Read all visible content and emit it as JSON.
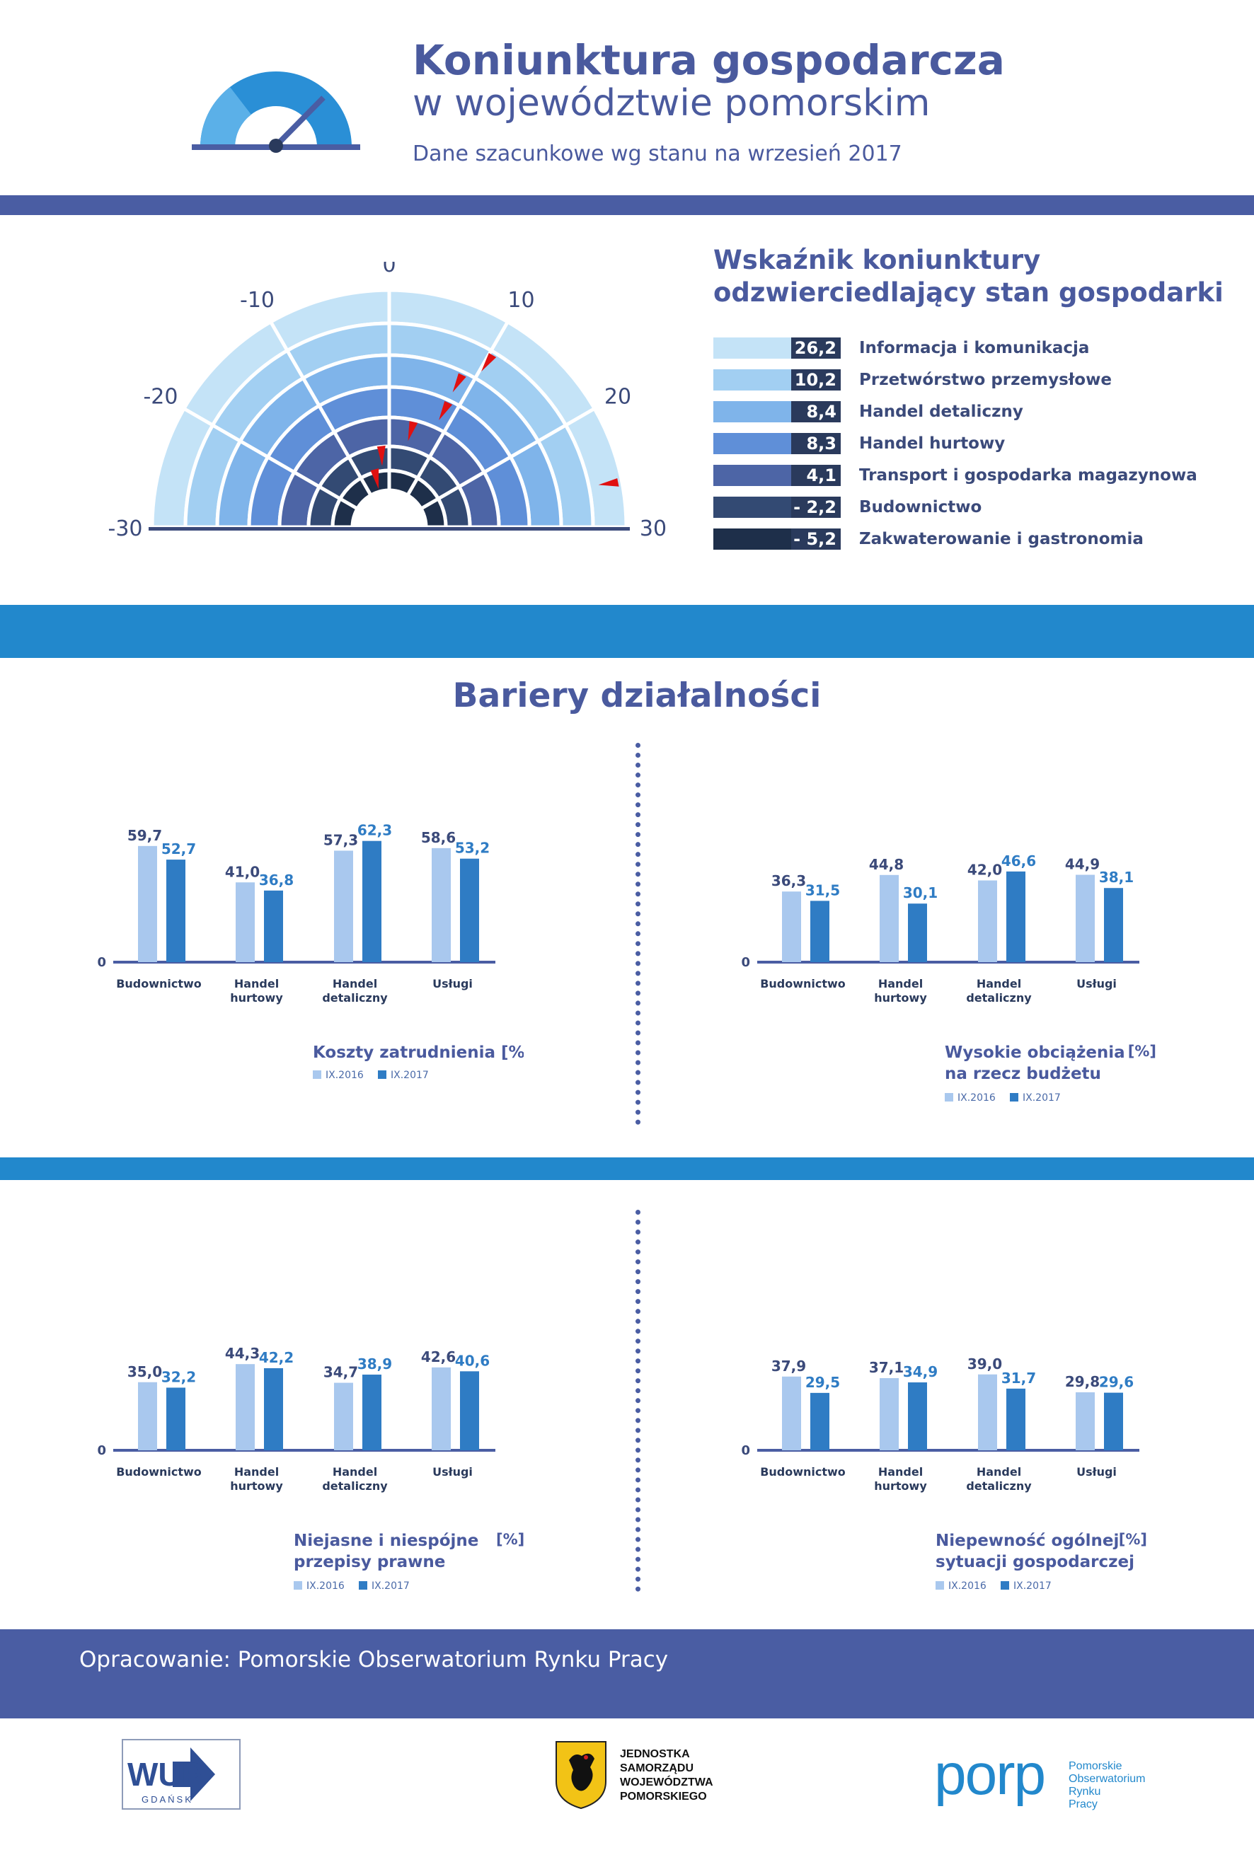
{
  "header": {
    "title_line1": "Koniunktura gospodarcza",
    "title_line2": "w województwie pomorskim",
    "subtitle": "Dane szacunkowe wg stanu na wrzesień 2017"
  },
  "indicator": {
    "title_line1": "Wskaźnik koniunktury",
    "title_line2": "odzwierciedlający stan gospodarki",
    "gauge_ticks": [
      "-30",
      "-20",
      "-10",
      "0",
      "10",
      "20",
      "30"
    ],
    "colors": [
      "#c4e3f7",
      "#a2cff2",
      "#7fb4ea",
      "#5f8fd8",
      "#4d65a6",
      "#334a73",
      "#1e2f4a"
    ],
    "marker_color": "#e01010",
    "items": [
      {
        "label": "Informacja i komunikacja",
        "value_text": "26,2",
        "value": 26.2
      },
      {
        "label": "Przetwórstwo przemysłowe",
        "value_text": "10,2",
        "value": 10.2
      },
      {
        "label": "Handel detaliczny",
        "value_text": "8,4",
        "value": 8.4
      },
      {
        "label": "Handel hurtowy",
        "value_text": "8,3",
        "value": 8.3
      },
      {
        "label": "Transport i gospodarka magazynowa",
        "value_text": "4,1",
        "value": 4.1
      },
      {
        "label": "Budownictwo",
        "value_text": "- 2,2",
        "value": -2.2
      },
      {
        "label": "Zakwaterowanie i gastronomia",
        "value_text": "- 5,2",
        "value": -5.2
      }
    ]
  },
  "barriers": {
    "title": "Bariery działalności"
  },
  "footer": {
    "text": "Opracowanie: Pomorskie Obserwatorium Rynku Pracy",
    "logo_wup": "WUP",
    "logo_wup_sub": "GDAŃSK",
    "logo_center": [
      "JEDNOSTKA",
      "SAMORZĄDU",
      "WOJEWÓDZTWA",
      "POMORSKIEGO"
    ],
    "logo_porp": "porp",
    "logo_porp_text": [
      "Pomorskie",
      "Obserwatorium",
      "Rynku",
      "Pracy"
    ]
  },
  "chart_data": [
    {
      "type": "bar",
      "title": "Koszty zatrudnienia",
      "unit": "[%]",
      "categories": [
        "Budownictwo",
        "Handel hurtowy",
        "Handel detaliczny",
        "Usługi"
      ],
      "category_lines": [
        [
          "Budownictwo"
        ],
        [
          "Handel",
          "hurtowy"
        ],
        [
          "Handel",
          "detaliczny"
        ],
        [
          "Usługi"
        ]
      ],
      "series": [
        {
          "name": "IX.2016",
          "color": "#a9c8ee",
          "values": [
            59.7,
            41.0,
            57.3,
            58.6
          ],
          "labels": [
            "59,7",
            "41,0",
            "57,3",
            "58,6"
          ]
        },
        {
          "name": "IX.2017",
          "color": "#2f7cc4",
          "values": [
            52.7,
            36.8,
            62.3,
            53.2
          ],
          "labels": [
            "52,7",
            "36,8",
            "62,3",
            "53,2"
          ]
        }
      ],
      "zero_label": "0"
    },
    {
      "type": "bar",
      "title": "Wysokie obciążenia na rzecz budżetu",
      "unit": "[%]",
      "categories": [
        "Budownictwo",
        "Handel hurtowy",
        "Handel detaliczny",
        "Usługi"
      ],
      "category_lines": [
        [
          "Budownictwo"
        ],
        [
          "Handel",
          "hurtowy"
        ],
        [
          "Handel",
          "detaliczny"
        ],
        [
          "Usługi"
        ]
      ],
      "series": [
        {
          "name": "IX.2016",
          "color": "#a9c8ee",
          "values": [
            36.3,
            44.8,
            42.0,
            44.9
          ],
          "labels": [
            "36,3",
            "44,8",
            "42,0",
            "44,9"
          ]
        },
        {
          "name": "IX.2017",
          "color": "#2f7cc4",
          "values": [
            31.5,
            30.1,
            46.6,
            38.1
          ],
          "labels": [
            "31,5",
            "30,1",
            "46,6",
            "38,1"
          ]
        }
      ],
      "zero_label": "0"
    },
    {
      "type": "bar",
      "title": "Niejasne i niespójne przepisy prawne",
      "unit": "[%]",
      "categories": [
        "Budownictwo",
        "Handel hurtowy",
        "Handel detaliczny",
        "Usługi"
      ],
      "category_lines": [
        [
          "Budownictwo"
        ],
        [
          "Handel",
          "hurtowy"
        ],
        [
          "Handel",
          "detaliczny"
        ],
        [
          "Usługi"
        ]
      ],
      "series": [
        {
          "name": "IX.2016",
          "color": "#a9c8ee",
          "values": [
            35.0,
            44.3,
            34.7,
            42.6
          ],
          "labels": [
            "35,0",
            "44,3",
            "34,7",
            "42,6"
          ]
        },
        {
          "name": "IX.2017",
          "color": "#2f7cc4",
          "values": [
            32.2,
            42.2,
            38.9,
            40.6
          ],
          "labels": [
            "32,2",
            "42,2",
            "38,9",
            "40,6"
          ]
        }
      ],
      "zero_label": "0"
    },
    {
      "type": "bar",
      "title": "Niepewność ogólnej sytuacji gospodarczej",
      "unit": "[%]",
      "categories": [
        "Budownictwo",
        "Handel hurtowy",
        "Handel detaliczny",
        "Usługi"
      ],
      "category_lines": [
        [
          "Budownictwo"
        ],
        [
          "Handel",
          "hurtowy"
        ],
        [
          "Handel",
          "detaliczny"
        ],
        [
          "Usługi"
        ]
      ],
      "series": [
        {
          "name": "IX.2016",
          "color": "#a9c8ee",
          "values": [
            37.9,
            37.1,
            39.0,
            29.8
          ],
          "labels": [
            "37,9",
            "37,1",
            "39,0",
            "29,8"
          ]
        },
        {
          "name": "IX.2017",
          "color": "#2f7cc4",
          "values": [
            29.5,
            34.9,
            31.7,
            29.6
          ],
          "labels": [
            "29,5",
            "34,9",
            "31,7",
            "29,6"
          ]
        }
      ],
      "zero_label": "0"
    }
  ]
}
